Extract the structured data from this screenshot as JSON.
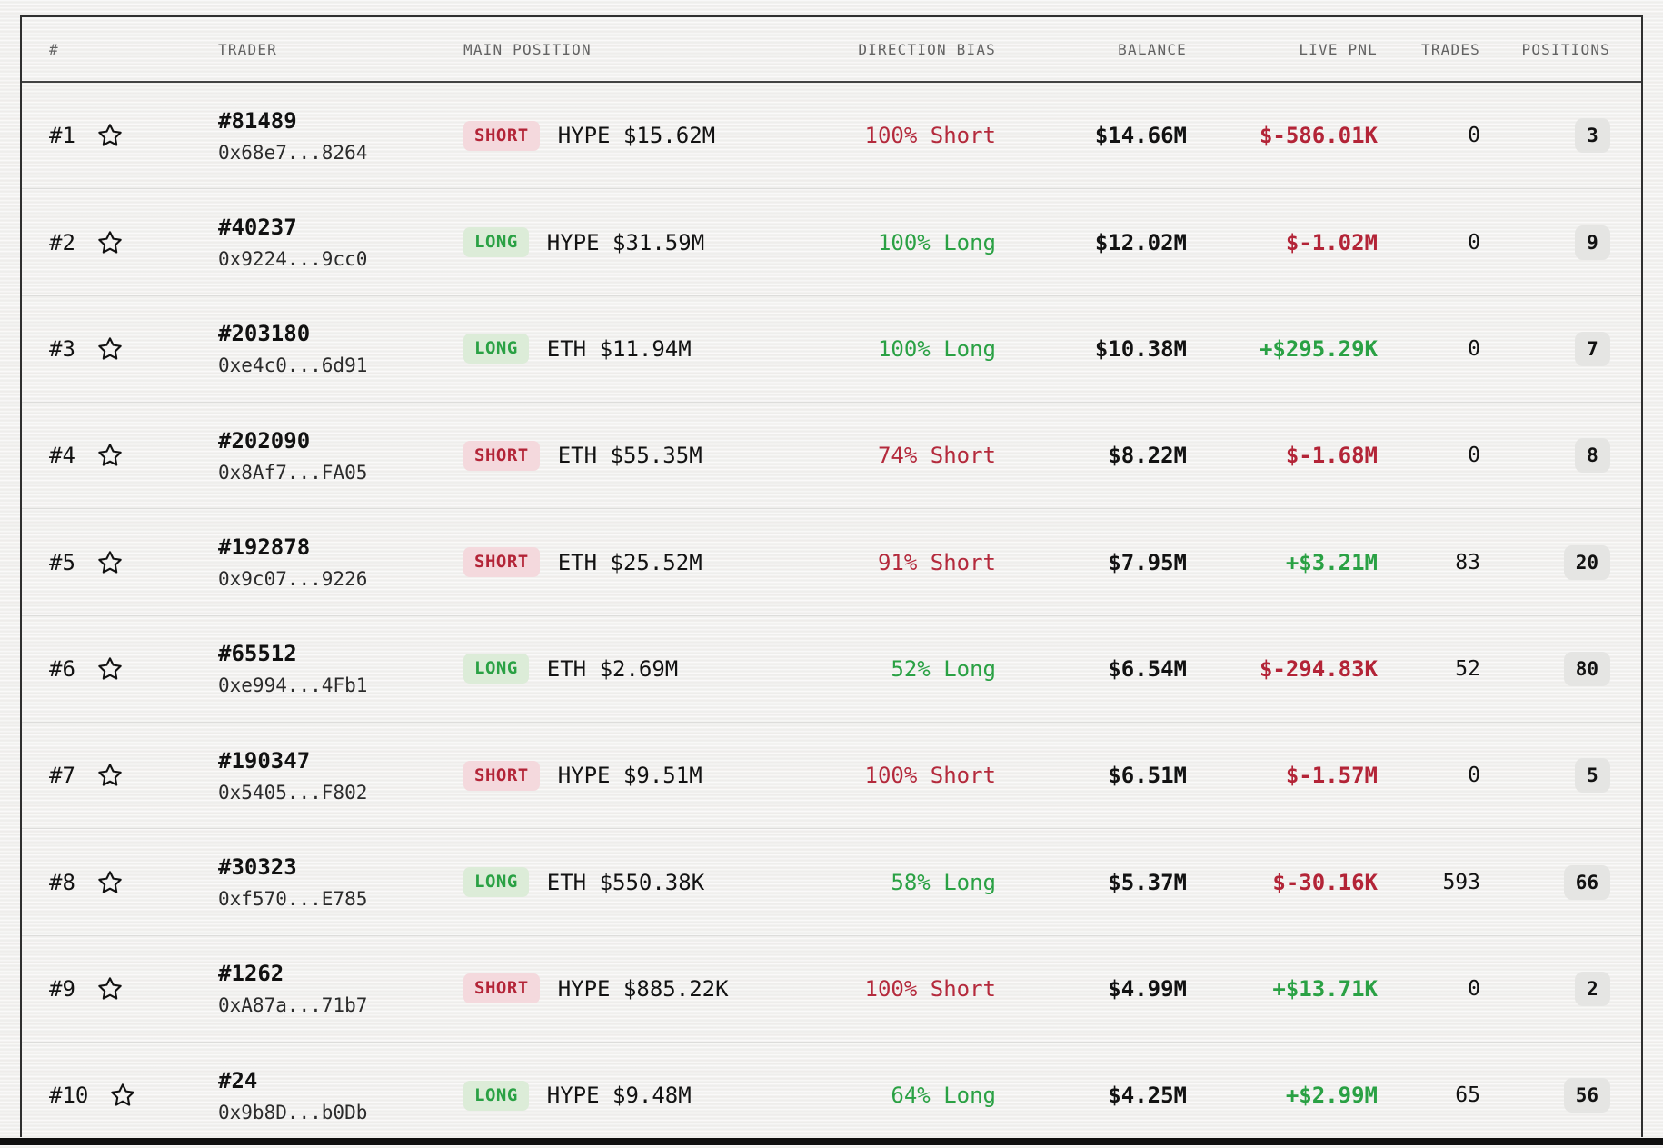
{
  "table": {
    "columns": [
      "#",
      "TRADER",
      "MAIN POSITION",
      "DIRECTION BIAS",
      "BALANCE",
      "LIVE PNL",
      "TRADES",
      "POSITIONS"
    ],
    "rows": [
      {
        "rank": "#1",
        "trader_id": "#81489",
        "address": "0x68e7...8264",
        "side": "SHORT",
        "position": "HYPE $15.62M",
        "bias": "100% Short",
        "balance": "$14.66M",
        "pnl": "$-586.01K",
        "trades": "0",
        "positions": "3"
      },
      {
        "rank": "#2",
        "trader_id": "#40237",
        "address": "0x9224...9cc0",
        "side": "LONG",
        "position": "HYPE $31.59M",
        "bias": "100% Long",
        "balance": "$12.02M",
        "pnl": "$-1.02M",
        "trades": "0",
        "positions": "9"
      },
      {
        "rank": "#3",
        "trader_id": "#203180",
        "address": "0xe4c0...6d91",
        "side": "LONG",
        "position": "ETH $11.94M",
        "bias": "100% Long",
        "balance": "$10.38M",
        "pnl": "+$295.29K",
        "trades": "0",
        "positions": "7"
      },
      {
        "rank": "#4",
        "trader_id": "#202090",
        "address": "0x8Af7...FA05",
        "side": "SHORT",
        "position": "ETH $55.35M",
        "bias": "74% Short",
        "balance": "$8.22M",
        "pnl": "$-1.68M",
        "trades": "0",
        "positions": "8"
      },
      {
        "rank": "#5",
        "trader_id": "#192878",
        "address": "0x9c07...9226",
        "side": "SHORT",
        "position": "ETH $25.52M",
        "bias": "91% Short",
        "balance": "$7.95M",
        "pnl": "+$3.21M",
        "trades": "83",
        "positions": "20"
      },
      {
        "rank": "#6",
        "trader_id": "#65512",
        "address": "0xe994...4Fb1",
        "side": "LONG",
        "position": "ETH $2.69M",
        "bias": "52% Long",
        "balance": "$6.54M",
        "pnl": "$-294.83K",
        "trades": "52",
        "positions": "80"
      },
      {
        "rank": "#7",
        "trader_id": "#190347",
        "address": "0x5405...F802",
        "side": "SHORT",
        "position": "HYPE $9.51M",
        "bias": "100% Short",
        "balance": "$6.51M",
        "pnl": "$-1.57M",
        "trades": "0",
        "positions": "5"
      },
      {
        "rank": "#8",
        "trader_id": "#30323",
        "address": "0xf570...E785",
        "side": "LONG",
        "position": "ETH $550.38K",
        "bias": "58% Long",
        "balance": "$5.37M",
        "pnl": "$-30.16K",
        "trades": "593",
        "positions": "66"
      },
      {
        "rank": "#9",
        "trader_id": "#1262",
        "address": "0xA87a...71b7",
        "side": "SHORT",
        "position": "HYPE $885.22K",
        "bias": "100% Short",
        "balance": "$4.99M",
        "pnl": "+$13.71K",
        "trades": "0",
        "positions": "2"
      },
      {
        "rank": "#10",
        "trader_id": "#24",
        "address": "0x9b8D...b0Db",
        "side": "LONG",
        "position": "HYPE $9.48M",
        "bias": "64% Long",
        "balance": "$4.25M",
        "pnl": "+$2.99M",
        "trades": "65",
        "positions": "56"
      }
    ],
    "colors": {
      "negative": "#b32437",
      "positive": "#2aa144",
      "short_badge_bg": "#f4d9dd",
      "long_badge_bg": "#dcecd8",
      "positions_badge_bg": "#e5e5e3",
      "header_text": "#636363"
    }
  }
}
